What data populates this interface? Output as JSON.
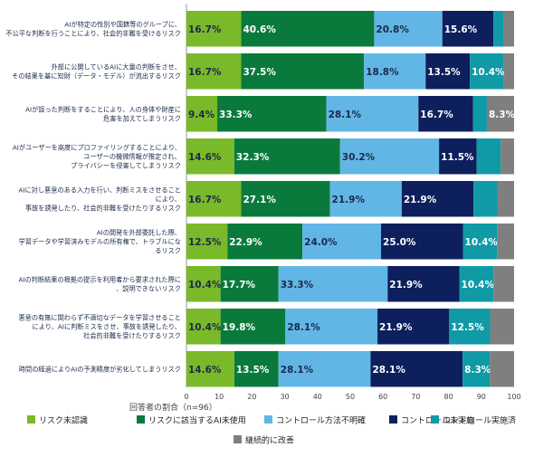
{
  "chart_data": {
    "type": "bar",
    "orientation": "horizontal",
    "stacked": true,
    "xlabel": "回答者の割合（n=96）",
    "xlim": [
      0,
      100
    ],
    "xticks": [
      "0",
      "10",
      "20",
      "30",
      "40",
      "50",
      "60",
      "70",
      "80",
      "90",
      "100"
    ],
    "legend_position": "bottom",
    "categories": [
      [
        "AIが特定の性別や国籍等のグループに、",
        "不公平な判断を行うことにより、社会的非難を受けるリスク"
      ],
      [
        "外部に公開しているAIに大量の判断をさせ、",
        "その結果を基に知財（データ・モデル）が流出するリスク"
      ],
      [
        "AIが誤った判断をすることにより、人の身体や財産に",
        "危害を加えてしまうリスク"
      ],
      [
        "AIがユーザーを高度にプロファイリングすることにより、",
        "ユーザーの機微情報が推定され、",
        "プライバシーを侵害してしまうリスク"
      ],
      [
        "AIに対し悪意のある入力を行い、判断ミスをさせること",
        "により、",
        "事故を誘発したり、社会的非難を受けたりするリスク"
      ],
      [
        "AIの開発を外部委託した際、",
        "学習データや学習済みモデルの所有権で、トラブルにな",
        "るリスク"
      ],
      [
        "AIの判断結果の根拠の提示を利用者から要求された際に",
        "、説明できないリスク"
      ],
      [
        "悪意の有無に関わらず不適切なデータを学習させること",
        "により、AIに判断ミスをさせ、事故を誘発したり、",
        "社会的非難を受けたりするリスク"
      ],
      [
        "時間の経過によりAIの予測精度が劣化してしまうリスク"
      ]
    ],
    "series": [
      {
        "name": "リスク未認識",
        "color": "#7ab929",
        "text_color": "#1b2a4a",
        "values": [
          16.7,
          16.7,
          9.4,
          14.6,
          16.7,
          12.5,
          10.4,
          10.4,
          14.6
        ],
        "labels": [
          "16.7%",
          "16.7%",
          "9.4%",
          "14.6%",
          "16.7%",
          "12.5%",
          "10.4%",
          "10.4%",
          "14.6%"
        ]
      },
      {
        "name": "リスクに該当するAI未使用",
        "color": "#0a7a3c",
        "text_color": "#ffffff",
        "values": [
          40.6,
          37.5,
          33.3,
          32.3,
          27.1,
          22.9,
          17.7,
          19.8,
          13.5
        ],
        "labels": [
          "40.6%",
          "37.5%",
          "33.3%",
          "32.3%",
          "27.1%",
          "22.9%",
          "17.7%",
          "19.8%",
          "13.5%"
        ]
      },
      {
        "name": "コントロール方法不明確",
        "color": "#62b6e6",
        "text_color": "#1b2a4a",
        "values": [
          20.8,
          18.8,
          28.1,
          30.2,
          21.9,
          24.0,
          33.3,
          28.1,
          28.1
        ],
        "labels": [
          "20.8%",
          "18.8%",
          "28.1%",
          "30.2%",
          "21.9%",
          "24.0%",
          "33.3%",
          "28.1%",
          "28.1%"
        ]
      },
      {
        "name": "コントロール未実施",
        "color": "#0d1f5c",
        "text_color": "#ffffff",
        "values": [
          15.6,
          13.5,
          16.7,
          11.5,
          21.9,
          25.0,
          21.9,
          21.9,
          28.1
        ],
        "labels": [
          "15.6%",
          "13.5%",
          "16.7%",
          "11.5%",
          "21.9%",
          "25.0%",
          "21.9%",
          "21.9%",
          "28.1%"
        ]
      },
      {
        "name": "コントロール実施済",
        "color": "#0f9aa6",
        "text_color": "#ffffff",
        "values": [
          3.1,
          10.4,
          4.2,
          7.3,
          7.3,
          10.4,
          10.4,
          12.5,
          8.3
        ],
        "labels": [
          "",
          "10.4%",
          "",
          "",
          "",
          "10.4%",
          "10.4%",
          "12.5%",
          "8.3%"
        ]
      },
      {
        "name": "継続的に改善",
        "color": "#7f7f7f",
        "text_color": "#ffffff",
        "values": [
          3.2,
          3.1,
          8.3,
          4.1,
          5.1,
          5.2,
          6.3,
          7.3,
          7.4
        ],
        "labels": [
          "",
          "",
          "8.3%",
          "",
          "",
          "",
          "",
          "",
          ""
        ]
      }
    ]
  }
}
